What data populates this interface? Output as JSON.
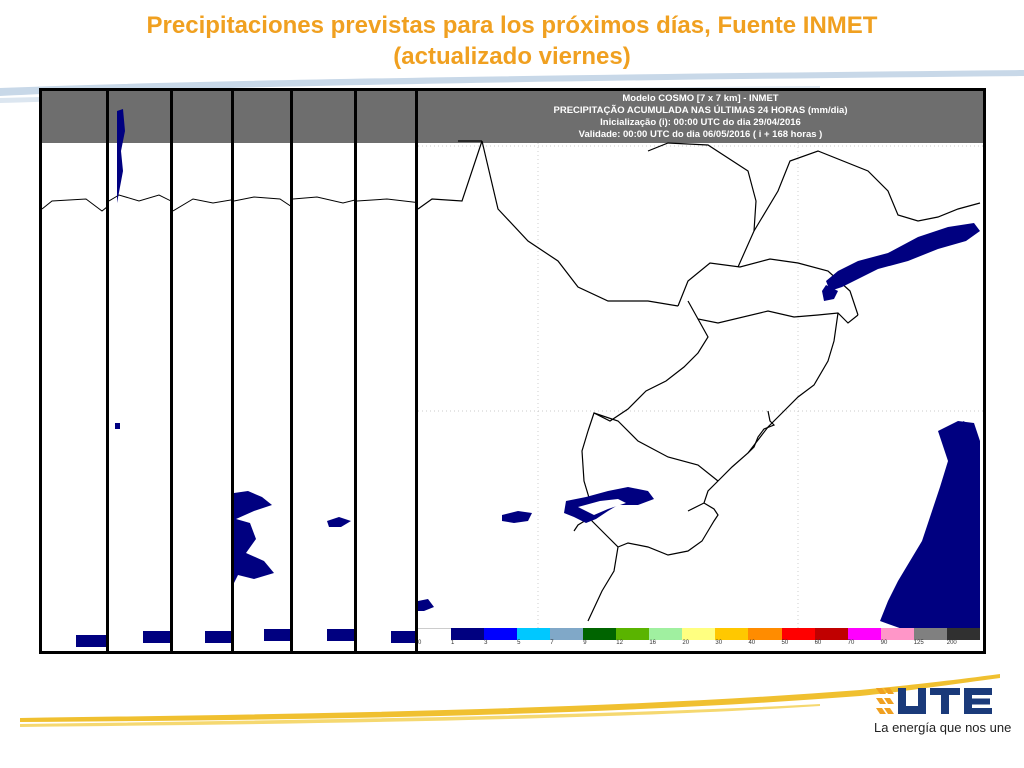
{
  "slide": {
    "title_line1": "Precipitaciones previstas para los próximos días, Fuente INMET",
    "title_line2": "(actualizado viernes)",
    "title_color": "#f0a020"
  },
  "main_map": {
    "header_line1": "Modelo COSMO [7 x 7 km] - INMET",
    "header_line2": "PRECIPITAÇÃO ACUMULADA NAS ÚLTIMAS 24 HORAS (mm/dia)",
    "header_line3": "Inicialização (i): 00:00 UTC do dia 29/04/2016",
    "header_line4": "Validade: 00:00 UTC do dia 06/05/2016 ( i + 168 horas )",
    "header_bg": "#6e6e6e",
    "precip_color": "#000080"
  },
  "legend": {
    "ticks": [
      "0",
      "1",
      "3",
      "5",
      "7",
      "9",
      "12",
      "16",
      "20",
      "30",
      "40",
      "50",
      "60",
      "70",
      "90",
      "125",
      "200"
    ],
    "colors": [
      "#ffffff",
      "#000080",
      "#0000ff",
      "#00c8ff",
      "#80a8c8",
      "#006400",
      "#5ab400",
      "#a0f0a0",
      "#ffff80",
      "#ffc800",
      "#ff8c00",
      "#ff0000",
      "#c00000",
      "#ff00ff",
      "#ff96c8",
      "#808080",
      "#303030"
    ]
  },
  "brand": {
    "logo_text": "UTE",
    "tagline": "La energía que nos une",
    "logo_color": "#1a3a7a"
  }
}
